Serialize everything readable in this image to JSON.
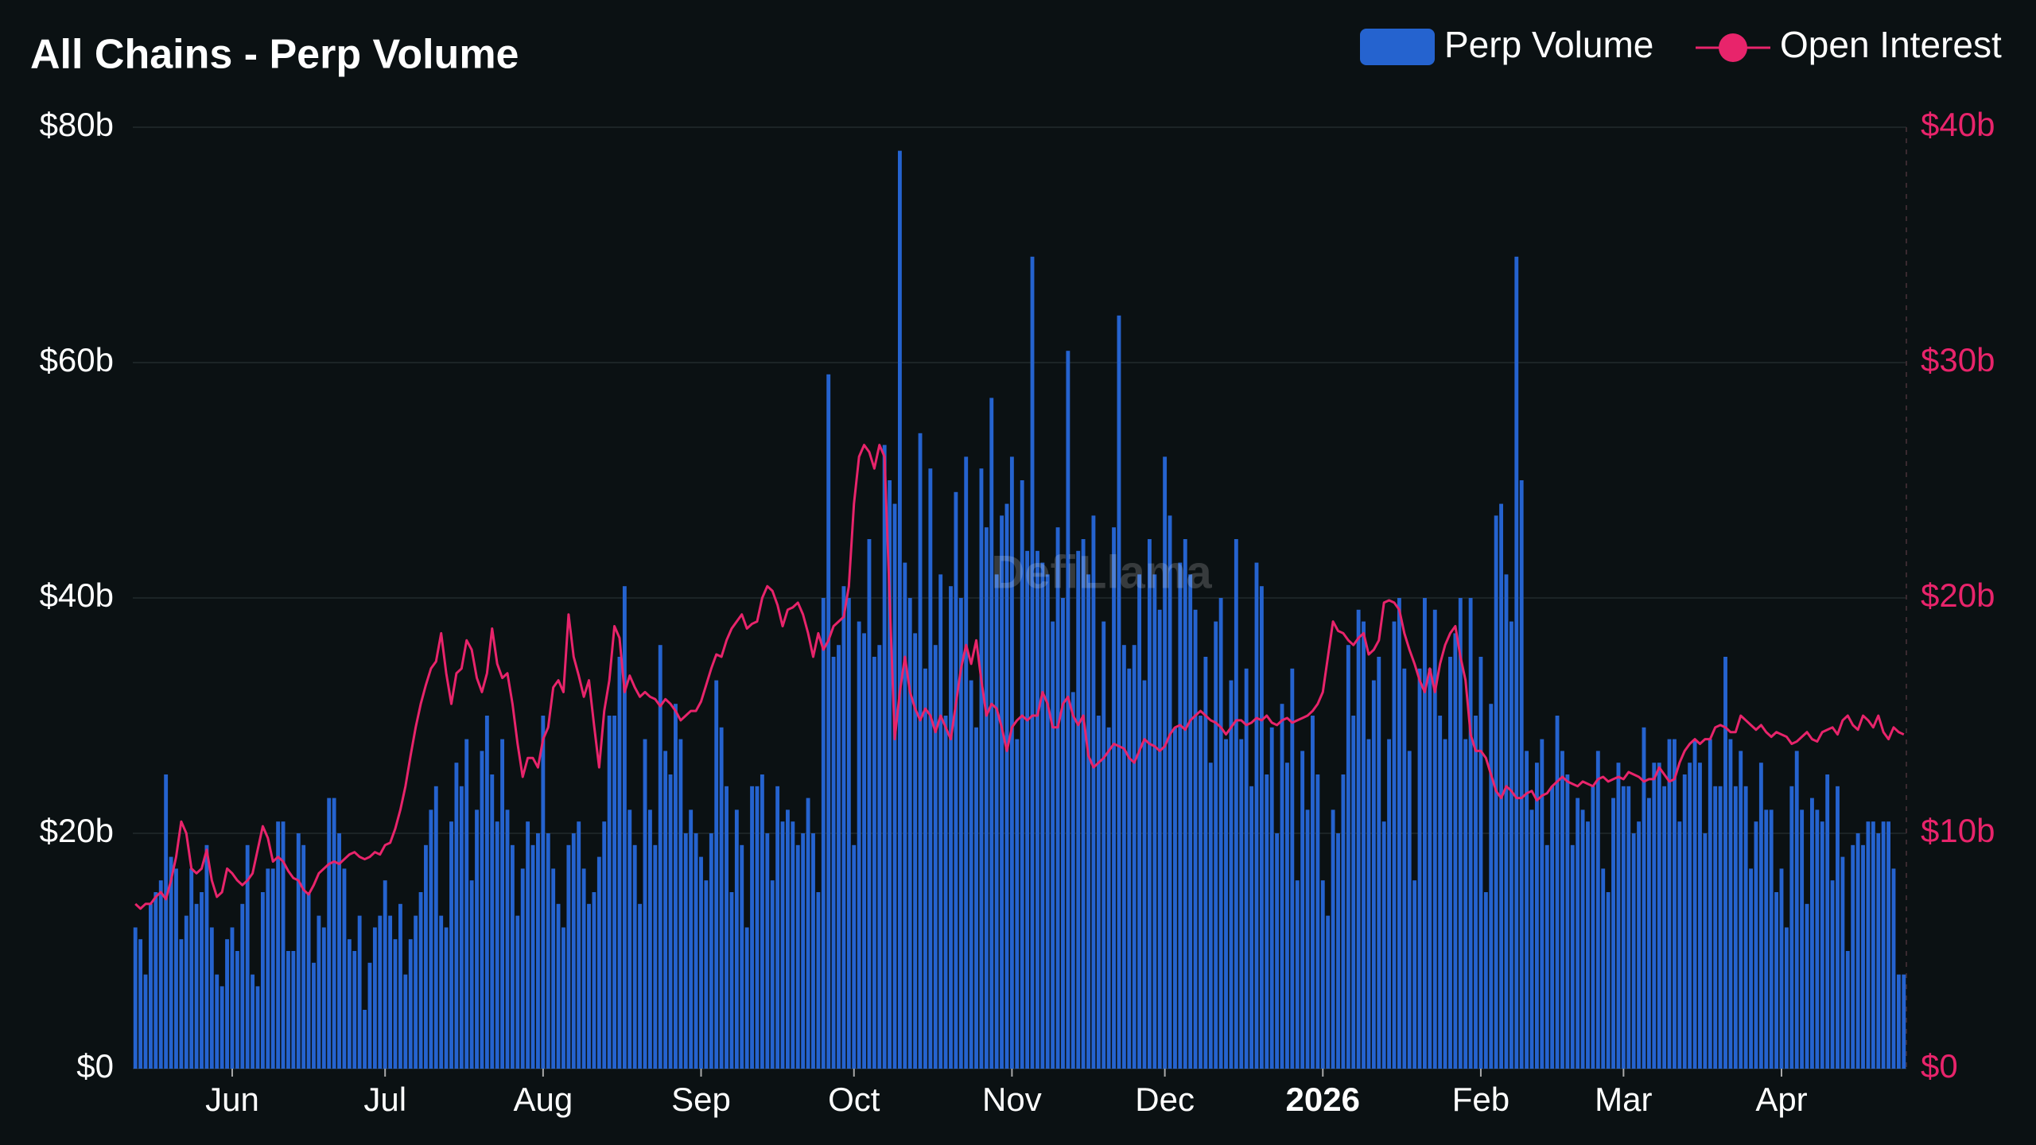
{
  "chart_data": {
    "type": "bar",
    "title": "All Chains - Perp Volume",
    "watermark": "DefiLlama",
    "categories": [
      null,
      null,
      null,
      null,
      null,
      null,
      null,
      null,
      null,
      null,
      null,
      null,
      null,
      null,
      null,
      null,
      null,
      null,
      null,
      "Jun",
      null,
      null,
      null,
      null,
      null,
      null,
      null,
      null,
      null,
      null,
      null,
      null,
      null,
      null,
      null,
      null,
      null,
      null,
      null,
      null,
      null,
      null,
      null,
      null,
      null,
      null,
      null,
      null,
      null,
      "Jul",
      null,
      null,
      null,
      null,
      null,
      null,
      null,
      null,
      null,
      null,
      null,
      null,
      null,
      null,
      null,
      null,
      null,
      null,
      null,
      null,
      null,
      null,
      null,
      null,
      null,
      null,
      null,
      null,
      null,
      null,
      "Aug",
      null,
      null,
      null,
      null,
      null,
      null,
      null,
      null,
      null,
      null,
      null,
      null,
      null,
      null,
      null,
      null,
      null,
      null,
      null,
      null,
      null,
      null,
      null,
      null,
      null,
      null,
      null,
      null,
      null,
      null,
      "Sep",
      null,
      null,
      null,
      null,
      null,
      null,
      null,
      null,
      null,
      null,
      null,
      null,
      null,
      null,
      null,
      null,
      null,
      null,
      null,
      null,
      null,
      null,
      null,
      null,
      null,
      null,
      null,
      null,
      null,
      "Oct",
      null,
      null,
      null,
      null,
      null,
      null,
      null,
      null,
      null,
      null,
      null,
      null,
      null,
      null,
      null,
      null,
      null,
      null,
      null,
      null,
      null,
      null,
      null,
      null,
      null,
      null,
      null,
      null,
      null,
      null,
      "Nov",
      null,
      null,
      null,
      null,
      null,
      null,
      null,
      null,
      null,
      null,
      null,
      null,
      null,
      null,
      null,
      null,
      null,
      null,
      null,
      null,
      null,
      null,
      null,
      null,
      null,
      null,
      null,
      null,
      null,
      "Dec",
      null,
      null,
      null,
      null,
      null,
      null,
      null,
      null,
      null,
      null,
      null,
      null,
      null,
      null,
      null,
      null,
      null,
      null,
      null,
      null,
      null,
      null,
      null,
      null,
      null,
      null,
      null,
      null,
      null,
      null,
      "2026",
      null,
      null,
      null,
      null,
      null,
      null,
      null,
      null,
      null,
      null,
      null,
      null,
      null,
      null,
      null,
      null,
      null,
      null,
      null,
      null,
      null,
      null,
      null,
      null,
      null,
      null,
      null,
      null,
      null,
      null,
      "Feb",
      null,
      null,
      null,
      null,
      null,
      null,
      null,
      null,
      null,
      null,
      null,
      null,
      null,
      null,
      null,
      null,
      null,
      null,
      null,
      null,
      null,
      null,
      null,
      null,
      null,
      null,
      null,
      "Mar",
      null,
      null,
      null,
      null,
      null,
      null,
      null,
      null,
      null,
      null,
      null,
      null,
      null,
      null,
      null,
      null,
      null,
      null,
      null,
      null,
      null,
      null,
      null,
      null,
      null,
      null,
      null,
      null,
      null,
      null,
      "Apr",
      null,
      null,
      null,
      null,
      null,
      null,
      null,
      null,
      null,
      null,
      null,
      null,
      null,
      null,
      null,
      null,
      null,
      null,
      null,
      null,
      null,
      null,
      null,
      null
    ],
    "series": [
      {
        "name": "Perp Volume",
        "type": "bar",
        "color": "#2563cf",
        "values": [
          12,
          11,
          8,
          14,
          15,
          16,
          25,
          18,
          17,
          11,
          13,
          17,
          14,
          15,
          19,
          12,
          8,
          7,
          11,
          12,
          10,
          14,
          19,
          8,
          7,
          15,
          17,
          17,
          21,
          21,
          10,
          10,
          20,
          19,
          15,
          9,
          13,
          12,
          23,
          23,
          20,
          17,
          11,
          10,
          13,
          5,
          9,
          12,
          13,
          16,
          13,
          11,
          14,
          8,
          11,
          13,
          15,
          19,
          22,
          24,
          13,
          12,
          21,
          26,
          24,
          28,
          16,
          22,
          27,
          30,
          25,
          21,
          28,
          22,
          19,
          13,
          17,
          21,
          19,
          20,
          30,
          20,
          17,
          14,
          12,
          19,
          20,
          21,
          17,
          14,
          15,
          18,
          21,
          30,
          30,
          35,
          41,
          22,
          19,
          14,
          28,
          22,
          19,
          36,
          27,
          25,
          31,
          28,
          20,
          22,
          20,
          18,
          16,
          20,
          33,
          29,
          24,
          15,
          22,
          19,
          12,
          24,
          24,
          25,
          20,
          16,
          24,
          21,
          22,
          21,
          19,
          20,
          23,
          20,
          15,
          40,
          59,
          35,
          36,
          41,
          40,
          19,
          38,
          37,
          45,
          35,
          36,
          53,
          50,
          48,
          78,
          43,
          40,
          37,
          54,
          34,
          51,
          36,
          42,
          30,
          41,
          49,
          40,
          52,
          33,
          29,
          51,
          46,
          57,
          42,
          47,
          48,
          52,
          28,
          50,
          44,
          69,
          44,
          43,
          42,
          38,
          46,
          40,
          61,
          32,
          44,
          45,
          42,
          47,
          30,
          38,
          29,
          46,
          64,
          36,
          34,
          36,
          42,
          33,
          45,
          42,
          39,
          52,
          47,
          29,
          43,
          45,
          42,
          39,
          30,
          35,
          26,
          38,
          40,
          28,
          33,
          45,
          28,
          34,
          24,
          43,
          41,
          25,
          29,
          20,
          31,
          26,
          34,
          16,
          27,
          22,
          30,
          25,
          16,
          13,
          22,
          20,
          25,
          36,
          30,
          39,
          38,
          28,
          33,
          35,
          21,
          28,
          38,
          40,
          34,
          27,
          16,
          34,
          40,
          34,
          39,
          30,
          28,
          35,
          37,
          40,
          28,
          40,
          30,
          35,
          15,
          31,
          47,
          48,
          42,
          38,
          69,
          50,
          27,
          22,
          26,
          28,
          19,
          24,
          30,
          27,
          25,
          19,
          23,
          22,
          21,
          24,
          27,
          17,
          15,
          23,
          26,
          24,
          24,
          20,
          21,
          29,
          23,
          26,
          26,
          24,
          28,
          28,
          21,
          25,
          26,
          28,
          26,
          20,
          28,
          24,
          24,
          35,
          28,
          24,
          27,
          24,
          17,
          21,
          26,
          22,
          22,
          15,
          17,
          12,
          24,
          27,
          22,
          14,
          23,
          22,
          21,
          25,
          16,
          24,
          18,
          10,
          19,
          20,
          19,
          21,
          21,
          20,
          21,
          21,
          17,
          8,
          8
        ]
      },
      {
        "name": "Open Interest",
        "type": "line",
        "axis": "y2",
        "color": "#e8246b",
        "values": [
          7,
          6.8,
          7,
          7,
          7.3,
          7.5,
          7.2,
          8,
          9,
          10.5,
          10,
          8.5,
          8.3,
          8.5,
          9.3,
          8,
          7.3,
          7.5,
          8.5,
          8.3,
          8,
          7.8,
          8,
          8.3,
          9.3,
          10.3,
          9.8,
          8.8,
          9,
          8.8,
          8.4,
          8.1,
          8,
          7.6,
          7.4,
          7.8,
          8.3,
          8.5,
          8.7,
          8.8,
          8.7,
          8.9,
          9.1,
          9.2,
          9,
          8.9,
          9,
          9.2,
          9.1,
          9.5,
          9.6,
          10.2,
          11,
          12,
          13.3,
          14.5,
          15.5,
          16.3,
          17,
          17.3,
          18.5,
          16.8,
          15.5,
          16.8,
          17,
          18.2,
          17.8,
          16.6,
          16,
          16.8,
          18.7,
          17.2,
          16.6,
          16.8,
          15.5,
          13.8,
          12.4,
          13.2,
          13.2,
          12.8,
          14,
          14.5,
          16.2,
          16.5,
          16,
          19.3,
          17.5,
          16.7,
          15.8,
          16.5,
          14.6,
          12.8,
          15.2,
          16.5,
          18.8,
          18.3,
          16,
          16.7,
          16.2,
          15.8,
          16,
          15.8,
          15.7,
          15.4,
          15.7,
          15.5,
          15.2,
          14.8,
          15,
          15.2,
          15.2,
          15.6,
          16.3,
          17,
          17.6,
          17.5,
          18.2,
          18.7,
          19,
          19.3,
          18.7,
          18.9,
          19,
          20,
          20.5,
          20.3,
          19.7,
          18.8,
          19.5,
          19.6,
          19.8,
          19.3,
          18.5,
          17.5,
          18.5,
          17.8,
          18.2,
          18.8,
          19,
          19.2,
          20.5,
          24,
          26,
          26.5,
          26.2,
          25.5,
          26.5,
          26,
          20,
          14,
          16,
          17.5,
          16,
          15.3,
          14.8,
          15.3,
          15,
          14.3,
          15,
          14.5,
          14,
          15.5,
          17,
          18,
          17.2,
          18.2,
          16.5,
          15,
          15.5,
          15.3,
          14.5,
          13.5,
          14.5,
          14.8,
          15,
          14.8,
          15,
          15,
          16,
          15.5,
          14.5,
          14.5,
          15.5,
          15.8,
          15,
          14.6,
          15,
          13.3,
          12.8,
          13,
          13.2,
          13.5,
          13.8,
          13.7,
          13.6,
          13.2,
          13,
          13.5,
          14,
          13.8,
          13.7,
          13.5,
          13.7,
          14.2,
          14.5,
          14.6,
          14.4,
          14.8,
          15,
          15.2,
          15,
          14.8,
          14.7,
          14.5,
          14.2,
          14.5,
          14.8,
          14.8,
          14.6,
          14.7,
          14.9,
          14.8,
          15,
          14.7,
          14.6,
          14.8,
          14.9,
          14.7,
          14.8,
          14.9,
          15,
          15.2,
          15.5,
          16,
          17.5,
          19,
          18.6,
          18.5,
          18.2,
          18,
          18.3,
          18.5,
          17.6,
          17.8,
          18.2,
          19.8,
          19.9,
          19.8,
          19.5,
          18.5,
          17.8,
          17.2,
          16.5,
          16,
          17,
          16,
          17.2,
          18,
          18.5,
          18.8,
          17.5,
          16.5,
          14.2,
          13.5,
          13.5,
          13.2,
          12.5,
          11.8,
          11.5,
          12,
          11.8,
          11.5,
          11.5,
          11.7,
          11.8,
          11.4,
          11.6,
          11.7,
          12,
          12.2,
          12.4,
          12.2,
          12.1,
          12,
          12.2,
          12.1,
          12,
          12.3,
          12.4,
          12.2,
          12.3,
          12.4,
          12.3,
          12.6,
          12.5,
          12.4,
          12.2,
          12.3,
          12.3,
          12.8,
          12.5,
          12.2,
          12.3,
          13,
          13.5,
          13.8,
          14,
          13.8,
          14,
          14,
          14.5,
          14.6,
          14.5,
          14.3,
          14.3,
          15,
          14.8,
          14.6,
          14.4,
          14.6,
          14.3,
          14.1,
          14.3,
          14.2,
          14.1,
          13.8,
          13.9,
          14.1,
          14.3,
          14,
          13.9,
          14.3,
          14.4,
          14.5,
          14.2,
          14.8,
          15,
          14.6,
          14.4,
          15,
          14.8,
          14.5,
          15,
          14.3,
          14,
          14.5,
          14.3,
          14.2
        ]
      }
    ],
    "ylim": [
      0,
      80
    ],
    "yticks": [
      {
        "value": 0,
        "label": "$0"
      },
      {
        "value": 20,
        "label": "$20b"
      },
      {
        "value": 40,
        "label": "$40b"
      },
      {
        "value": 60,
        "label": "$60b"
      },
      {
        "value": 80,
        "label": "$80b"
      }
    ],
    "y2lim": [
      0,
      40
    ],
    "y2ticks": [
      {
        "value": 0,
        "label": "$0"
      },
      {
        "value": 10,
        "label": "$10b"
      },
      {
        "value": 20,
        "label": "$20b"
      },
      {
        "value": 30,
        "label": "$30b"
      },
      {
        "value": 40,
        "label": "$40b"
      }
    ],
    "grid": true,
    "legend": "top-right"
  }
}
